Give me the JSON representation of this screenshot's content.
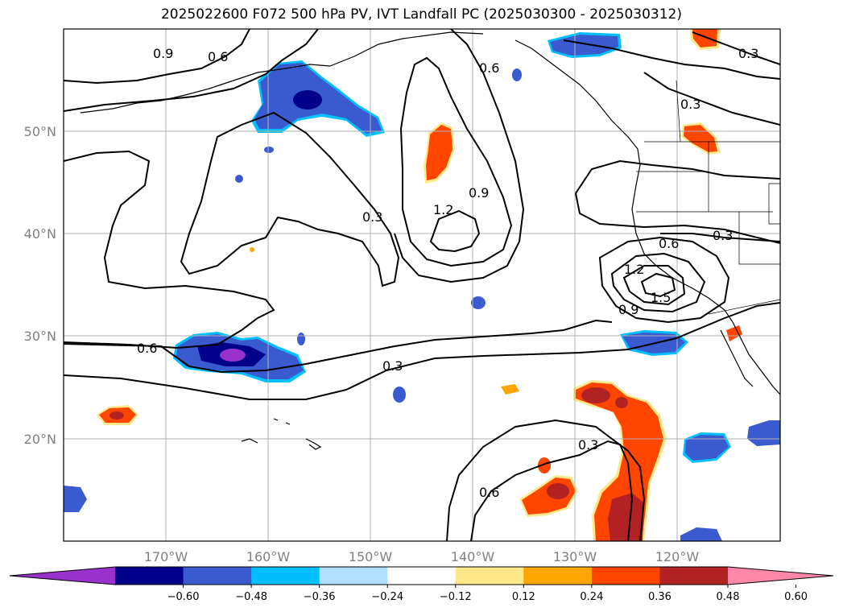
{
  "title": "2025022600 F072 500 hPa PV, IVT Landfall PC (2025030300 - 2025030312)",
  "map": {
    "lon_labels": [
      "170°W",
      "160°W",
      "150°W",
      "140°W",
      "130°W",
      "120°W"
    ],
    "lat_labels": [
      "50°N",
      "40°N",
      "30°N",
      "20°N"
    ],
    "contour_labels": [
      {
        "text": "0.9"
      },
      {
        "text": "0.6"
      },
      {
        "text": "0.6"
      },
      {
        "text": "0.3"
      },
      {
        "text": "0.3"
      },
      {
        "text": "0.9"
      },
      {
        "text": "1.2"
      },
      {
        "text": "0.3"
      },
      {
        "text": "0.6"
      },
      {
        "text": "0.3"
      },
      {
        "text": "0.6"
      },
      {
        "text": "1.2"
      },
      {
        "text": "1.5"
      },
      {
        "text": "0.9"
      },
      {
        "text": "0.3"
      },
      {
        "text": "0.6"
      }
    ]
  },
  "colorbar": {
    "colors": [
      "#9932cc",
      "#00008b",
      "#3a5bd0",
      "#00bfff",
      "#b0e0ff",
      "#ffffff",
      "#ffe88a",
      "#ffa500",
      "#ff4500",
      "#b22222",
      "#ff88aa"
    ],
    "tick_labels": [
      "−0.60",
      "−0.48",
      "−0.36",
      "−0.24",
      "−0.12",
      "0.12",
      "0.24",
      "0.36",
      "0.48",
      "0.60"
    ]
  }
}
